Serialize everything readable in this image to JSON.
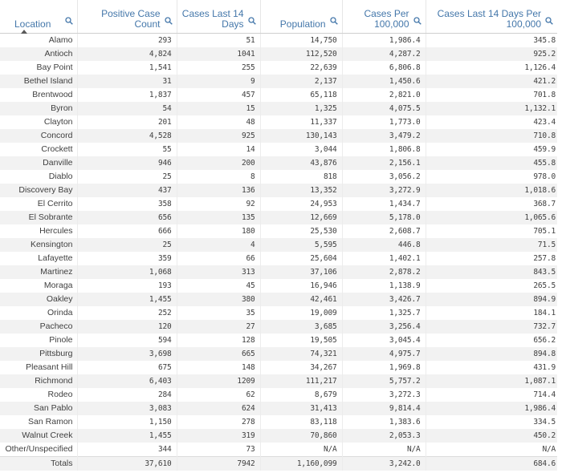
{
  "columns": [
    {
      "label": "Location"
    },
    {
      "label": "Positive Case Count"
    },
    {
      "label": "Cases Last 14 Days"
    },
    {
      "label": "Population"
    },
    {
      "label": "Cases Per 100,000"
    },
    {
      "label": "Cases Last 14 Days Per 100,000"
    }
  ],
  "rows": [
    [
      "Alamo",
      "293",
      "51",
      "14,750",
      "1,986.4",
      "345.8"
    ],
    [
      "Antioch",
      "4,824",
      "1041",
      "112,520",
      "4,287.2",
      "925.2"
    ],
    [
      "Bay Point",
      "1,541",
      "255",
      "22,639",
      "6,806.8",
      "1,126.4"
    ],
    [
      "Bethel Island",
      "31",
      "9",
      "2,137",
      "1,450.6",
      "421.2"
    ],
    [
      "Brentwood",
      "1,837",
      "457",
      "65,118",
      "2,821.0",
      "701.8"
    ],
    [
      "Byron",
      "54",
      "15",
      "1,325",
      "4,075.5",
      "1,132.1"
    ],
    [
      "Clayton",
      "201",
      "48",
      "11,337",
      "1,773.0",
      "423.4"
    ],
    [
      "Concord",
      "4,528",
      "925",
      "130,143",
      "3,479.2",
      "710.8"
    ],
    [
      "Crockett",
      "55",
      "14",
      "3,044",
      "1,806.8",
      "459.9"
    ],
    [
      "Danville",
      "946",
      "200",
      "43,876",
      "2,156.1",
      "455.8"
    ],
    [
      "Diablo",
      "25",
      "8",
      "818",
      "3,056.2",
      "978.0"
    ],
    [
      "Discovery Bay",
      "437",
      "136",
      "13,352",
      "3,272.9",
      "1,018.6"
    ],
    [
      "El Cerrito",
      "358",
      "92",
      "24,953",
      "1,434.7",
      "368.7"
    ],
    [
      "El Sobrante",
      "656",
      "135",
      "12,669",
      "5,178.0",
      "1,065.6"
    ],
    [
      "Hercules",
      "666",
      "180",
      "25,530",
      "2,608.7",
      "705.1"
    ],
    [
      "Kensington",
      "25",
      "4",
      "5,595",
      "446.8",
      "71.5"
    ],
    [
      "Lafayette",
      "359",
      "66",
      "25,604",
      "1,402.1",
      "257.8"
    ],
    [
      "Martinez",
      "1,068",
      "313",
      "37,106",
      "2,878.2",
      "843.5"
    ],
    [
      "Moraga",
      "193",
      "45",
      "16,946",
      "1,138.9",
      "265.5"
    ],
    [
      "Oakley",
      "1,455",
      "380",
      "42,461",
      "3,426.7",
      "894.9"
    ],
    [
      "Orinda",
      "252",
      "35",
      "19,009",
      "1,325.7",
      "184.1"
    ],
    [
      "Pacheco",
      "120",
      "27",
      "3,685",
      "3,256.4",
      "732.7"
    ],
    [
      "Pinole",
      "594",
      "128",
      "19,505",
      "3,045.4",
      "656.2"
    ],
    [
      "Pittsburg",
      "3,698",
      "665",
      "74,321",
      "4,975.7",
      "894.8"
    ],
    [
      "Pleasant Hill",
      "675",
      "148",
      "34,267",
      "1,969.8",
      "431.9"
    ],
    [
      "Richmond",
      "6,403",
      "1209",
      "111,217",
      "5,757.2",
      "1,087.1"
    ],
    [
      "Rodeo",
      "284",
      "62",
      "8,679",
      "3,272.3",
      "714.4"
    ],
    [
      "San Pablo",
      "3,083",
      "624",
      "31,413",
      "9,814.4",
      "1,986.4"
    ],
    [
      "San Ramon",
      "1,150",
      "278",
      "83,118",
      "1,383.6",
      "334.5"
    ],
    [
      "Walnut Creek",
      "1,455",
      "319",
      "70,860",
      "2,053.3",
      "450.2"
    ],
    [
      "Other/Unspecified",
      "344",
      "73",
      "N/A",
      "N/A",
      "N/A"
    ]
  ],
  "totals": [
    "Totals",
    "37,610",
    "7942",
    "1,160,099",
    "3,242.0",
    "684.6"
  ]
}
